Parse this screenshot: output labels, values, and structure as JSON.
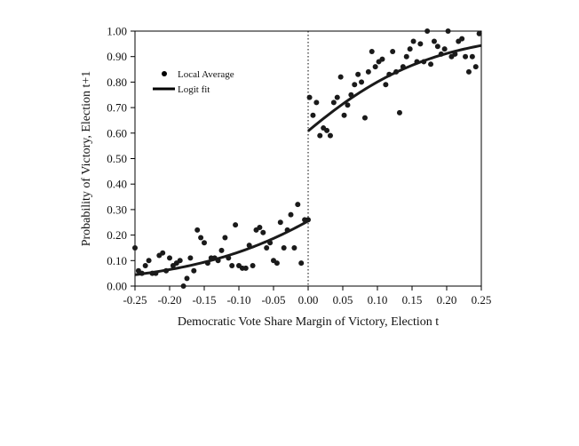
{
  "chart_data": {
    "type": "scatter",
    "title": "",
    "xlabel": "Democratic Vote Share Margin of Victory, Election t",
    "ylabel": "Probability of  Victory, Election t+1",
    "xlim": [
      -0.25,
      0.25
    ],
    "ylim": [
      0.0,
      1.0
    ],
    "x_ticks": [
      -0.25,
      -0.2,
      -0.15,
      -0.1,
      -0.05,
      0.0,
      0.05,
      0.1,
      0.15,
      0.2,
      0.25
    ],
    "x_tick_labels": [
      "-0.25",
      "-0.20",
      "-0.15",
      "-0.10",
      "-0.05",
      "0.00",
      "0.05",
      "0.10",
      "0.15",
      "0.20",
      "0.25"
    ],
    "y_ticks": [
      0.0,
      0.1,
      0.2,
      0.3,
      0.4,
      0.5,
      0.6,
      0.7,
      0.8,
      0.9,
      1.0
    ],
    "y_tick_labels": [
      "0.00",
      "0.10",
      "0.20",
      "0.30",
      "0.40",
      "0.50",
      "0.60",
      "0.70",
      "0.80",
      "0.90",
      "1.00"
    ],
    "threshold_x": 0.0,
    "legend": {
      "placement": "top-left",
      "entries": [
        "Local Average",
        "Logit fit"
      ]
    },
    "series": [
      {
        "name": "Local Average",
        "kind": "points",
        "color": "#1a1a1a",
        "x": [
          -0.25,
          -0.245,
          -0.24,
          -0.235,
          -0.23,
          -0.225,
          -0.22,
          -0.215,
          -0.21,
          -0.205,
          -0.2,
          -0.195,
          -0.19,
          -0.185,
          -0.18,
          -0.175,
          -0.17,
          -0.165,
          -0.16,
          -0.155,
          -0.15,
          -0.145,
          -0.14,
          -0.135,
          -0.13,
          -0.125,
          -0.12,
          -0.115,
          -0.11,
          -0.105,
          -0.1,
          -0.095,
          -0.09,
          -0.085,
          -0.08,
          -0.075,
          -0.07,
          -0.065,
          -0.06,
          -0.055,
          -0.05,
          -0.045,
          -0.04,
          -0.035,
          -0.03,
          -0.025,
          -0.02,
          -0.015,
          -0.01,
          -0.005,
          0.0,
          0.002,
          0.007,
          0.012,
          0.017,
          0.022,
          0.027,
          0.032,
          0.037,
          0.042,
          0.047,
          0.052,
          0.057,
          0.062,
          0.067,
          0.072,
          0.077,
          0.082,
          0.087,
          0.092,
          0.097,
          0.102,
          0.107,
          0.112,
          0.117,
          0.122,
          0.127,
          0.132,
          0.137,
          0.142,
          0.147,
          0.152,
          0.157,
          0.162,
          0.167,
          0.172,
          0.177,
          0.182,
          0.187,
          0.192,
          0.197,
          0.202,
          0.207,
          0.212,
          0.217,
          0.222,
          0.227,
          0.232,
          0.237,
          0.242,
          0.247
        ],
        "y": [
          0.15,
          0.06,
          0.05,
          0.08,
          0.1,
          0.05,
          0.05,
          0.12,
          0.13,
          0.06,
          0.11,
          0.08,
          0.09,
          0.1,
          0.0,
          0.03,
          0.11,
          0.06,
          0.22,
          0.19,
          0.17,
          0.09,
          0.11,
          0.11,
          0.1,
          0.14,
          0.19,
          0.11,
          0.08,
          0.24,
          0.08,
          0.07,
          0.07,
          0.16,
          0.08,
          0.22,
          0.23,
          0.21,
          0.15,
          0.17,
          0.1,
          0.09,
          0.25,
          0.15,
          0.22,
          0.28,
          0.15,
          0.32,
          0.09,
          0.26,
          0.26,
          0.74,
          0.67,
          0.72,
          0.59,
          0.62,
          0.61,
          0.59,
          0.72,
          0.74,
          0.82,
          0.67,
          0.71,
          0.75,
          0.79,
          0.83,
          0.8,
          0.66,
          0.84,
          0.92,
          0.86,
          0.88,
          0.89,
          0.79,
          0.83,
          0.92,
          0.84,
          0.68,
          0.86,
          0.9,
          0.93,
          0.96,
          0.88,
          0.95,
          0.88,
          1.0,
          0.87,
          0.96,
          0.94,
          0.91,
          0.93,
          1.0,
          0.9,
          0.91,
          0.96,
          0.97,
          0.9,
          0.84,
          0.9,
          0.86,
          0.99
        ]
      },
      {
        "name": "Logit fit",
        "kind": "curve",
        "color": "#1a1a1a",
        "segments": [
          {
            "x_range": [
              -0.25,
              0.0
            ],
            "a": -1.07,
            "b": 8.0
          },
          {
            "x_range": [
              0.0,
              0.25
            ],
            "a": 0.44,
            "b": 9.5
          }
        ]
      }
    ]
  }
}
